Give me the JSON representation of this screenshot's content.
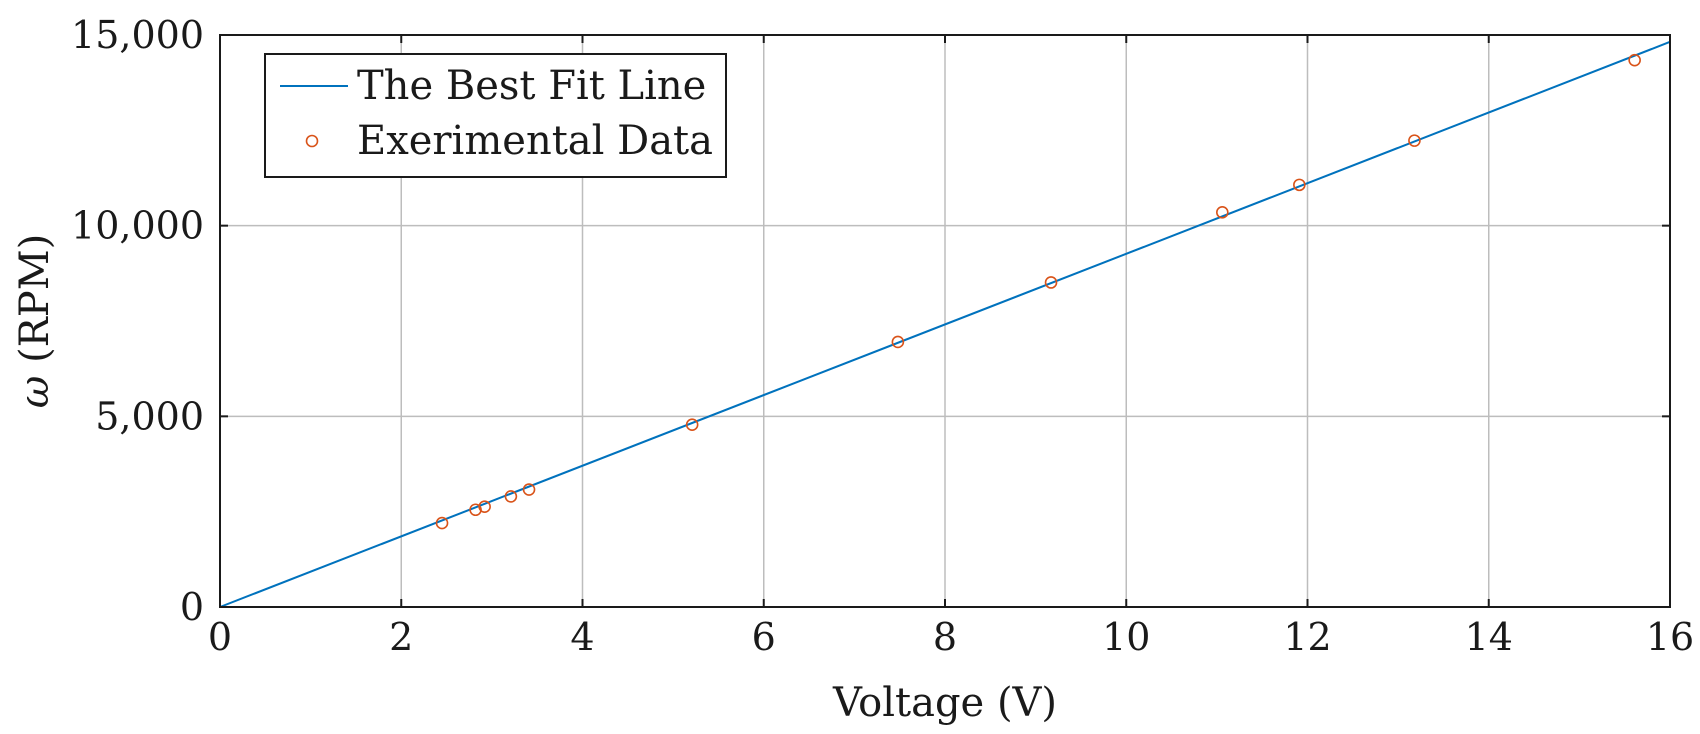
{
  "chart_data": {
    "type": "scatter",
    "xlabel": "Voltage (V)",
    "ylabel_symbol": "ω",
    "ylabel_unit": "(RPM)",
    "xlim": [
      0,
      16
    ],
    "ylim": [
      0,
      15000
    ],
    "xticks": [
      0,
      2,
      4,
      6,
      8,
      10,
      12,
      14,
      16
    ],
    "xtick_labels": [
      "0",
      "2",
      "4",
      "6",
      "8",
      "10",
      "12",
      "14",
      "16"
    ],
    "yticks": [
      0,
      5000,
      10000,
      15000
    ],
    "ytick_labels": [
      "0",
      "5,000",
      "10,000",
      "15,000"
    ],
    "grid": true,
    "legend_position": "top-left",
    "series": [
      {
        "name": "The Best Fit Line",
        "kind": "line",
        "color": "#0072bd",
        "x": [
          0,
          16
        ],
        "y": [
          0,
          14820
        ]
      },
      {
        "name": "Exerimental Data",
        "kind": "markers",
        "marker": "open-circle",
        "color": "#d95319",
        "x": [
          2.45,
          2.82,
          2.92,
          3.21,
          3.41,
          5.21,
          7.48,
          9.17,
          11.06,
          11.91,
          13.18,
          15.61
        ],
        "y": [
          2200,
          2550,
          2630,
          2900,
          3080,
          4780,
          6950,
          8510,
          10350,
          11070,
          12230,
          14340
        ]
      }
    ]
  }
}
